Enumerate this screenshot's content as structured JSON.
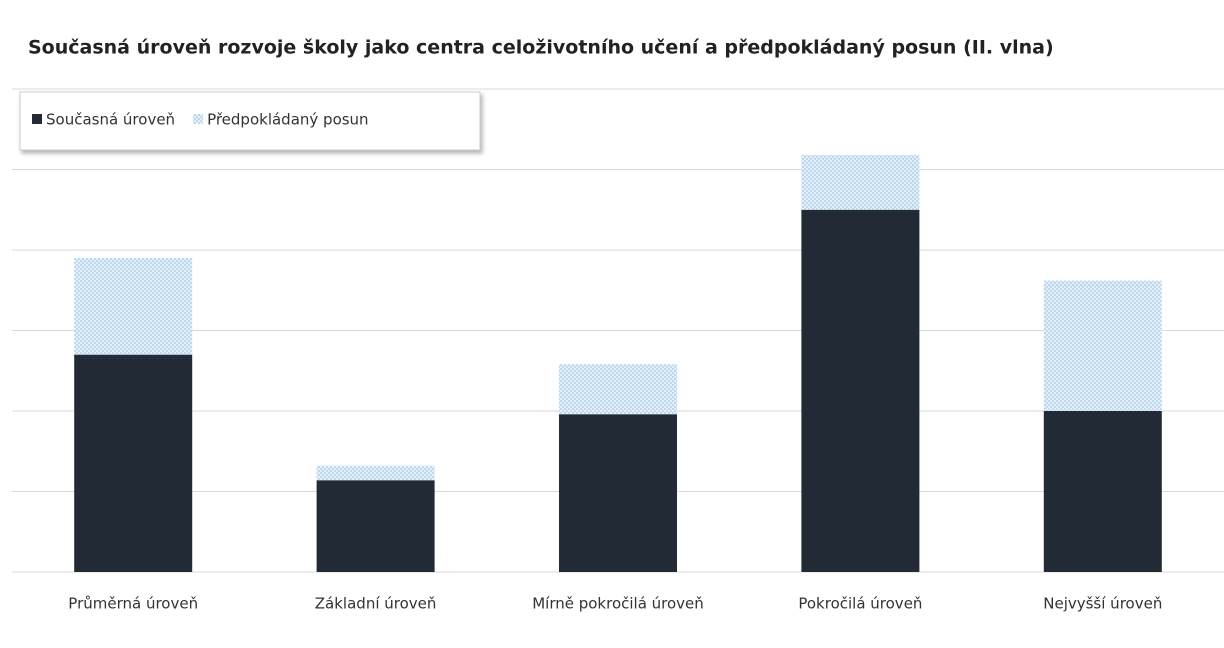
{
  "chart_data": {
    "type": "stacked_bar",
    "title": "Současná úroveň rozvoje školy jako centra celoživotního učení a předpokládaný posun (II. vlna)",
    "categories": [
      "Průměrná úroveň",
      "Základní úroveň",
      "Mírně pokročilá úroveň",
      "Pokročilá úroveň",
      "Nejvyšší úroveň"
    ],
    "series": [
      {
        "name": "Současná úroveň",
        "color": "#222a35",
        "values": [
          13.5,
          5.7,
          9.8,
          22.5,
          10.0
        ]
      },
      {
        "name": "Předpokládaný posun",
        "color": "#bdd7ee",
        "values": [
          6.0,
          0.9,
          3.1,
          3.4,
          8.1
        ]
      }
    ],
    "ylim": [
      0,
      30
    ],
    "yticks": [
      0,
      5,
      10,
      15,
      20,
      25,
      30
    ],
    "grid": true,
    "legend": "top-left"
  }
}
